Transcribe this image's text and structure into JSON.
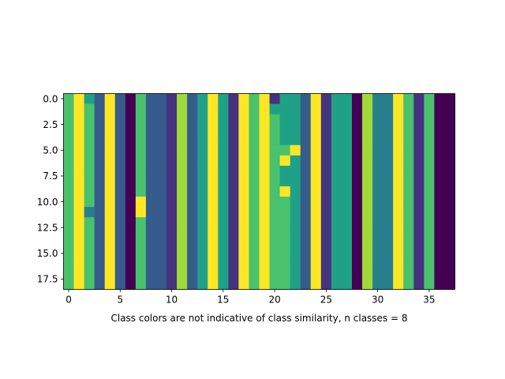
{
  "chart_data": {
    "type": "heatmap",
    "title": "",
    "xlabel": "Class colors are not indicative of class similarity, n classes = 8",
    "ylabel": "",
    "n_rows": 19,
    "n_cols": 38,
    "x_range": [
      -0.5,
      37.5
    ],
    "y_range": [
      18.5,
      -0.5
    ],
    "x_ticks": [
      0,
      5,
      10,
      15,
      20,
      25,
      30,
      35
    ],
    "x_tick_labels": [
      "0",
      "5",
      "10",
      "15",
      "20",
      "25",
      "30",
      "35"
    ],
    "y_ticks": [
      0.0,
      2.5,
      5.0,
      7.5,
      10.0,
      12.5,
      15.0,
      17.5
    ],
    "y_tick_labels": [
      "0.0",
      "2.5",
      "5.0",
      "7.5",
      "10.0",
      "12.5",
      "15.0",
      "17.5"
    ],
    "class_colors": [
      "#440154",
      "#46327e",
      "#365c8d",
      "#277f8e",
      "#1fa187",
      "#4ac16d",
      "#a0da39",
      "#fde725"
    ],
    "column_classes": [
      5,
      7,
      5,
      2,
      7,
      2,
      0,
      5,
      2,
      2,
      1,
      6,
      2,
      4,
      7,
      4,
      1,
      7,
      5,
      7,
      5,
      5,
      4,
      2,
      7,
      1,
      4,
      4,
      0,
      6,
      3,
      3,
      7,
      5,
      1,
      5,
      0,
      0
    ],
    "exceptions": [
      {
        "row": 0,
        "col": 2,
        "class": 4
      },
      {
        "row": 9,
        "col": 2,
        "class": 5
      },
      {
        "row": 11,
        "col": 2,
        "class": 3
      },
      {
        "row": 10,
        "col": 7,
        "class": 7
      },
      {
        "row": 11,
        "col": 7,
        "class": 7
      },
      {
        "row": 0,
        "col": 20,
        "class": 1
      },
      {
        "row": 1,
        "col": 20,
        "class": 4
      },
      {
        "row": 0,
        "col": 21,
        "class": 4
      },
      {
        "row": 1,
        "col": 21,
        "class": 4
      },
      {
        "row": 2,
        "col": 21,
        "class": 4
      },
      {
        "row": 3,
        "col": 21,
        "class": 4
      },
      {
        "row": 4,
        "col": 21,
        "class": 4
      },
      {
        "row": 5,
        "col": 22,
        "class": 7
      },
      {
        "row": 6,
        "col": 21,
        "class": 7
      },
      {
        "row": 7,
        "col": 21,
        "class": 4
      },
      {
        "row": 8,
        "col": 21,
        "class": 4
      },
      {
        "row": 9,
        "col": 21,
        "class": 7
      }
    ]
  }
}
